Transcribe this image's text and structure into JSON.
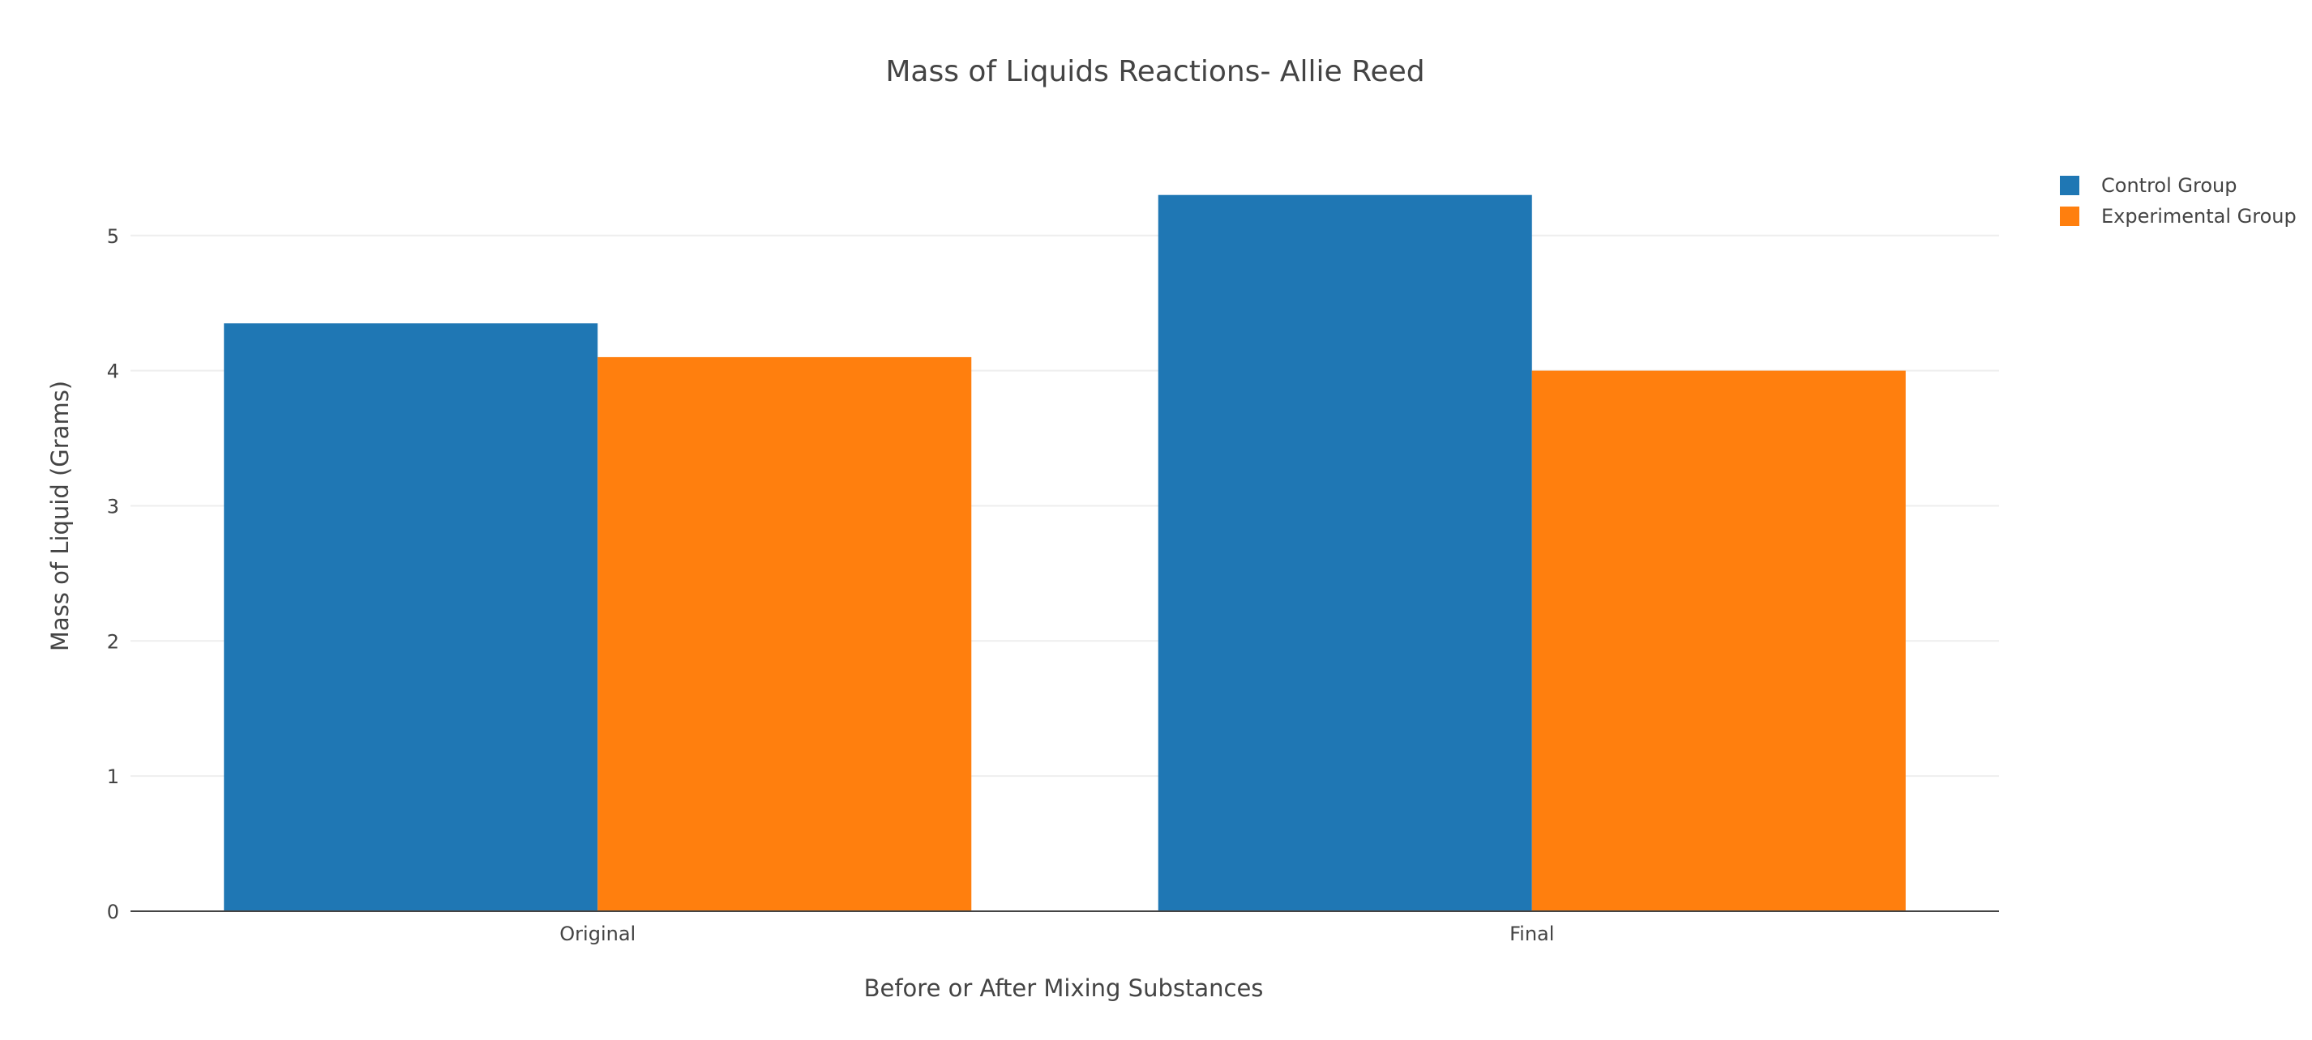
{
  "chart_data": {
    "type": "bar",
    "title": "Mass of Liquids Reactions- Allie Reed",
    "xlabel": "Before or After Mixing Substances",
    "ylabel": "Mass of Liquid (Grams)",
    "categories": [
      "Original",
      "Final"
    ],
    "series": [
      {
        "name": "Control Group",
        "values": [
          4.35,
          5.3
        ],
        "color": "#1f77b4"
      },
      {
        "name": "Experimental Group",
        "values": [
          4.1,
          4.0
        ],
        "color": "#ff7f0e"
      }
    ],
    "ylim": [
      0,
      5.58
    ],
    "yticks": [
      0,
      1,
      2,
      3,
      4,
      5
    ],
    "grid": true,
    "legend_position": "top-right"
  }
}
